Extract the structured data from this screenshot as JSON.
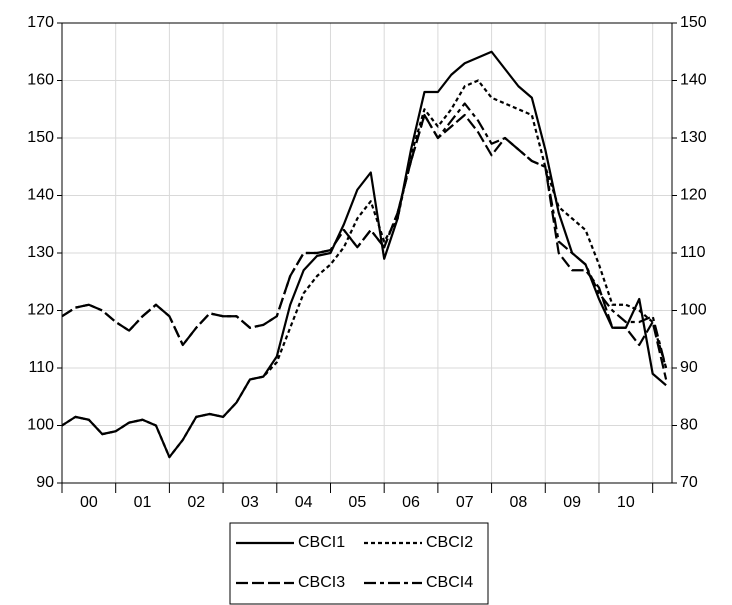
{
  "chart_data": {
    "type": "line",
    "x": [
      2000,
      2000.25,
      2000.5,
      2000.75,
      2001,
      2001.25,
      2001.5,
      2001.75,
      2002,
      2002.25,
      2002.5,
      2002.75,
      2003,
      2003.25,
      2003.5,
      2003.75,
      2004,
      2004.25,
      2004.5,
      2004.75,
      2005,
      2005.25,
      2005.5,
      2005.75,
      2006,
      2006.25,
      2006.5,
      2006.75,
      2007,
      2007.25,
      2007.5,
      2007.75,
      2008,
      2008.25,
      2008.5,
      2008.75,
      2009,
      2009.25,
      2009.5,
      2009.75,
      2010,
      2010.25,
      2010.5,
      2010.75,
      2011,
      2011.25
    ],
    "xlim": [
      2000,
      2011.36
    ],
    "xticks": [
      {
        "value": 2000.5,
        "label": "00"
      },
      {
        "value": 2001.5,
        "label": "01"
      },
      {
        "value": 2002.5,
        "label": "02"
      },
      {
        "value": 2003.5,
        "label": "03"
      },
      {
        "value": 2004.5,
        "label": "04"
      },
      {
        "value": 2005.5,
        "label": "05"
      },
      {
        "value": 2006.5,
        "label": "06"
      },
      {
        "value": 2007.5,
        "label": "07"
      },
      {
        "value": 2008.5,
        "label": "08"
      },
      {
        "value": 2009.5,
        "label": "09"
      },
      {
        "value": 2010.5,
        "label": "10"
      }
    ],
    "xgrid": [
      2001,
      2002,
      2003,
      2004,
      2005,
      2006,
      2007,
      2008,
      2009,
      2010,
      2011
    ],
    "ylim": [
      90,
      170
    ],
    "yticks": [
      90,
      100,
      110,
      120,
      130,
      140,
      150,
      160,
      170
    ],
    "y2lim": [
      70,
      150
    ],
    "y2ticks": [
      70,
      80,
      90,
      100,
      110,
      120,
      130,
      140,
      150
    ],
    "grid": true,
    "series": [
      {
        "name": "CBCI1",
        "color": "#000000",
        "dash": "none",
        "values": [
          100,
          101.5,
          101,
          98.5,
          99,
          100.5,
          101,
          100,
          94.5,
          97.5,
          101.5,
          102,
          101.5,
          104,
          108,
          108.5,
          112,
          121,
          127,
          129.5,
          130,
          135,
          141,
          144,
          129,
          136,
          148,
          158,
          158,
          161,
          163,
          164,
          165,
          162,
          159,
          157,
          148,
          137,
          130,
          128,
          122,
          117,
          117,
          122,
          109,
          107
        ]
      },
      {
        "name": "CBCI2",
        "color": "#000000",
        "dash": "4,3",
        "values": [
          100,
          101.5,
          101,
          98.5,
          99,
          100.5,
          101,
          100,
          94.5,
          97.5,
          101.5,
          102,
          101.5,
          104,
          108,
          108.5,
          111,
          117,
          123,
          126,
          128,
          131,
          136,
          139,
          132,
          136,
          147,
          155,
          152,
          155,
          159,
          160,
          157,
          156,
          155,
          154,
          145,
          138,
          136,
          134,
          128,
          121,
          121,
          120,
          118,
          110
        ]
      },
      {
        "name": "CBCI3",
        "color": "#000000",
        "dash": "12,4",
        "axis": "y2",
        "values": [
          99,
          100.5,
          101,
          100,
          98,
          96.5,
          99,
          101,
          99,
          94,
          97,
          99.5,
          99,
          99,
          97,
          97.5,
          99,
          106,
          110,
          110,
          110.5,
          114,
          111,
          114,
          111,
          117,
          126,
          134,
          130,
          132,
          134,
          131,
          127,
          130,
          128,
          126,
          125,
          110,
          107,
          107,
          104,
          97,
          97,
          94,
          98,
          88
        ]
      },
      {
        "name": "CBCI4",
        "color": "#000000",
        "dash": "12,4,4,4",
        "axis": "y2",
        "values": [
          99,
          100.5,
          101,
          100,
          98,
          96.5,
          99,
          101,
          99,
          94,
          97,
          99.5,
          99,
          99,
          97,
          97.5,
          99,
          106,
          110,
          110,
          110.5,
          114,
          111,
          114,
          111,
          117,
          126,
          134,
          130,
          133,
          136,
          133,
          129,
          130,
          128,
          126,
          125,
          112,
          110,
          108,
          103,
          100,
          98,
          98,
          99,
          90
        ]
      }
    ]
  }
}
